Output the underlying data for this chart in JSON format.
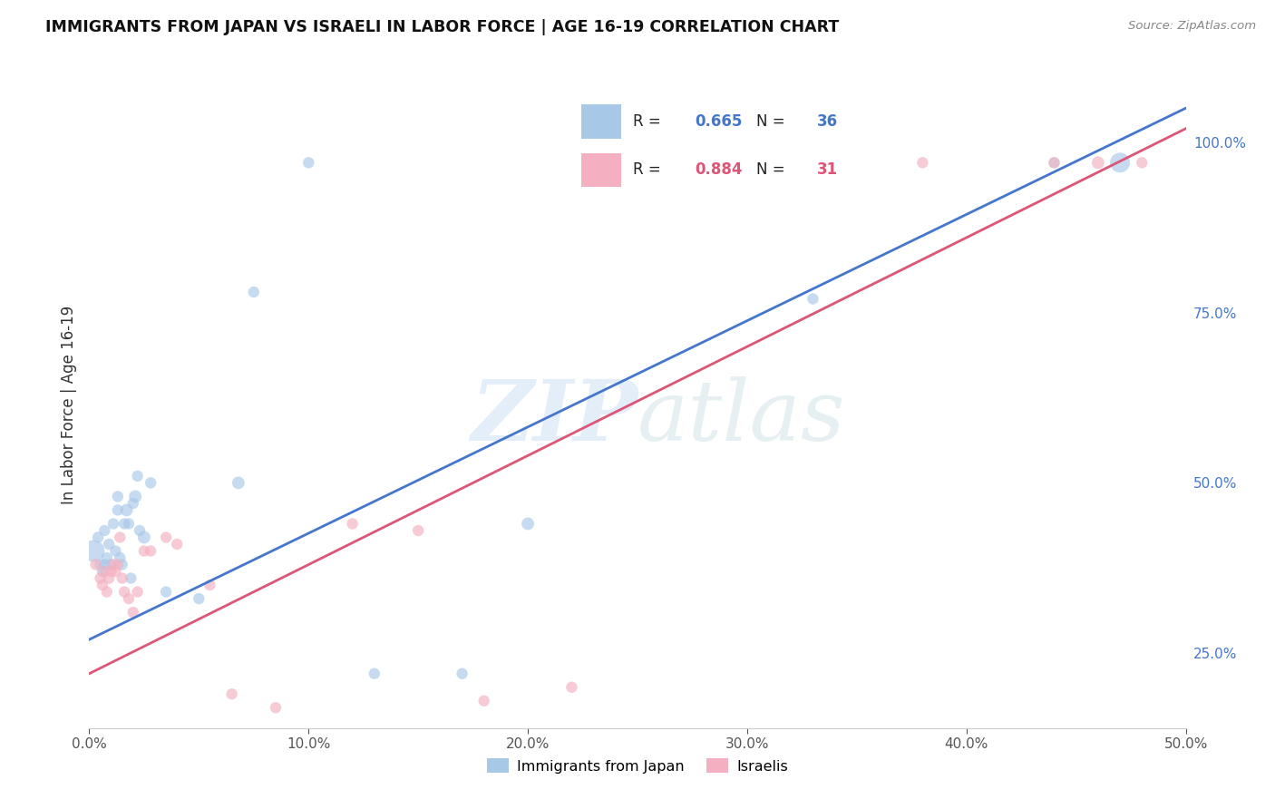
{
  "title": "IMMIGRANTS FROM JAPAN VS ISRAELI IN LABOR FORCE | AGE 16-19 CORRELATION CHART",
  "source": "Source: ZipAtlas.com",
  "ylabel": "In Labor Force | Age 16-19",
  "watermark_zip": "ZIP",
  "watermark_atlas": "atlas",
  "xlim": [
    0.0,
    0.5
  ],
  "ylim": [
    0.14,
    1.09
  ],
  "xticks": [
    0.0,
    0.1,
    0.2,
    0.3,
    0.4,
    0.5
  ],
  "xtick_labels": [
    "0.0%",
    "10.0%",
    "20.0%",
    "30.0%",
    "40.0%",
    "50.0%"
  ],
  "yticks": [
    0.25,
    0.5,
    0.75,
    1.0
  ],
  "ytick_labels": [
    "25.0%",
    "50.0%",
    "75.0%",
    "100.0%"
  ],
  "blue_R": "0.665",
  "blue_N": "36",
  "pink_R": "0.884",
  "pink_N": "31",
  "blue_label": "Immigrants from Japan",
  "pink_label": "Israelis",
  "blue_color": "#a8c8e8",
  "pink_color": "#f4b0c0",
  "blue_line_color": "#4477cc",
  "pink_line_color": "#dd5577",
  "blue_R_color": "#4477cc",
  "pink_R_color": "#dd5577",
  "background": "#ffffff",
  "grid_color": "#cccccc",
  "blue_line_y0": 0.27,
  "blue_line_y1": 1.05,
  "pink_line_y0": 0.22,
  "pink_line_y1": 1.02,
  "blue_scatter_x": [
    0.002,
    0.004,
    0.005,
    0.006,
    0.007,
    0.007,
    0.008,
    0.009,
    0.01,
    0.011,
    0.012,
    0.013,
    0.013,
    0.014,
    0.015,
    0.016,
    0.017,
    0.018,
    0.019,
    0.02,
    0.021,
    0.022,
    0.023,
    0.025,
    0.028,
    0.035,
    0.05,
    0.068,
    0.075,
    0.1,
    0.13,
    0.17,
    0.2,
    0.33,
    0.44,
    0.47
  ],
  "blue_scatter_y": [
    0.4,
    0.42,
    0.38,
    0.37,
    0.38,
    0.43,
    0.39,
    0.41,
    0.38,
    0.44,
    0.4,
    0.46,
    0.48,
    0.39,
    0.38,
    0.44,
    0.46,
    0.44,
    0.36,
    0.47,
    0.48,
    0.51,
    0.43,
    0.42,
    0.5,
    0.34,
    0.33,
    0.5,
    0.78,
    0.97,
    0.22,
    0.22,
    0.44,
    0.77,
    0.97,
    0.97
  ],
  "blue_scatter_s": [
    300,
    80,
    80,
    80,
    80,
    80,
    80,
    80,
    80,
    80,
    80,
    80,
    80,
    80,
    80,
    80,
    100,
    80,
    80,
    80,
    100,
    80,
    80,
    100,
    80,
    80,
    80,
    100,
    80,
    80,
    80,
    80,
    100,
    80,
    80,
    250
  ],
  "pink_scatter_x": [
    0.003,
    0.005,
    0.006,
    0.007,
    0.008,
    0.009,
    0.01,
    0.011,
    0.012,
    0.013,
    0.014,
    0.015,
    0.016,
    0.018,
    0.02,
    0.022,
    0.025,
    0.028,
    0.035,
    0.04,
    0.055,
    0.065,
    0.085,
    0.12,
    0.15,
    0.18,
    0.22,
    0.38,
    0.44,
    0.46,
    0.48
  ],
  "pink_scatter_y": [
    0.38,
    0.36,
    0.35,
    0.37,
    0.34,
    0.36,
    0.37,
    0.38,
    0.37,
    0.38,
    0.42,
    0.36,
    0.34,
    0.33,
    0.31,
    0.34,
    0.4,
    0.4,
    0.42,
    0.41,
    0.35,
    0.19,
    0.17,
    0.44,
    0.43,
    0.18,
    0.2,
    0.97,
    0.97,
    0.97,
    0.97
  ],
  "pink_scatter_s": [
    80,
    80,
    80,
    80,
    80,
    80,
    80,
    80,
    80,
    80,
    80,
    80,
    80,
    80,
    80,
    80,
    80,
    80,
    80,
    80,
    80,
    80,
    80,
    80,
    80,
    80,
    80,
    80,
    80,
    100,
    80
  ]
}
